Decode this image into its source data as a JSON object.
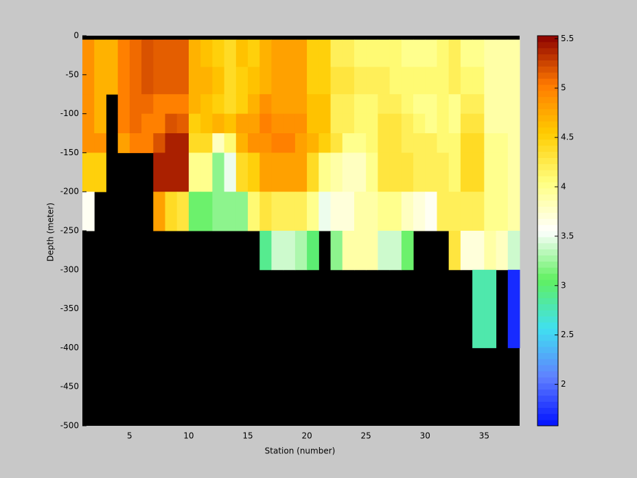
{
  "chart_data": {
    "type": "heatmap",
    "xlabel": "Station (number)",
    "ylabel": "Depth (meter)",
    "xlim": [
      1,
      38
    ],
    "ylim": [
      -500,
      0
    ],
    "xticks": [
      5,
      10,
      15,
      20,
      25,
      30,
      35
    ],
    "yticks": [
      0,
      -50,
      -100,
      -150,
      -200,
      -250,
      -300,
      -350,
      -400,
      -450,
      -500
    ],
    "clim": [
      1.58,
      5.53
    ],
    "cticks": [
      2,
      2.5,
      3,
      3.5,
      4,
      4.5,
      5,
      5.5
    ],
    "colormap": [
      "#0010ff",
      "#6080ff",
      "#40e0f0",
      "#60f060",
      "#ffffff",
      "#ffff80",
      "#ffcc00",
      "#ff7a00",
      "#8b0000"
    ],
    "background": "#000000",
    "station_edges": [
      1,
      2,
      3,
      4,
      5,
      6,
      7,
      8,
      9,
      10,
      11,
      12,
      13,
      14,
      15,
      16,
      17,
      18,
      19,
      20,
      21,
      22,
      23,
      24,
      25,
      26,
      27,
      28,
      29,
      30,
      31,
      32,
      33,
      34,
      35,
      36,
      37,
      38
    ],
    "depth_edges": [
      -5,
      -40,
      -75,
      -100,
      -125,
      -150,
      -200,
      -250,
      -300,
      -400,
      -500
    ],
    "z": [
      [
        4.9,
        4.7,
        4.7,
        5.0,
        5.1,
        5.2,
        5.15,
        5.15,
        5.15,
        4.7,
        4.6,
        4.5,
        4.4,
        4.6,
        4.5,
        4.7,
        4.8,
        4.8,
        4.8,
        4.5,
        4.5,
        4.2,
        4.2,
        4.1,
        4.1,
        4.1,
        4.1,
        4.0,
        4.0,
        4.0,
        4.1,
        4.2,
        4.0,
        4.0,
        3.9,
        3.9,
        3.9
      ],
      [
        4.9,
        4.7,
        4.7,
        5.0,
        5.1,
        5.2,
        5.15,
        5.15,
        5.15,
        4.7,
        4.7,
        4.6,
        4.4,
        4.5,
        4.6,
        4.7,
        4.8,
        4.8,
        4.8,
        4.5,
        4.5,
        4.3,
        4.3,
        4.2,
        4.2,
        4.2,
        4.1,
        4.1,
        4.1,
        4.1,
        4.1,
        4.2,
        4.1,
        4.1,
        3.9,
        3.9,
        3.9
      ],
      [
        4.9,
        4.7,
        null,
        5.0,
        5.1,
        5.1,
        5.0,
        5.0,
        5.0,
        4.7,
        4.6,
        4.5,
        4.4,
        4.5,
        4.7,
        4.9,
        4.8,
        4.8,
        4.8,
        4.6,
        4.6,
        4.2,
        4.2,
        4.1,
        4.1,
        4.2,
        4.2,
        4.1,
        4.0,
        4.0,
        4.1,
        4.0,
        4.2,
        4.2,
        3.9,
        3.9,
        3.9
      ],
      [
        4.9,
        4.7,
        null,
        5.0,
        5.1,
        5.0,
        5.0,
        5.2,
        5.15,
        4.5,
        4.6,
        4.7,
        4.6,
        4.8,
        4.8,
        5.0,
        4.9,
        4.9,
        4.9,
        4.6,
        4.6,
        4.2,
        4.2,
        4.1,
        4.1,
        4.3,
        4.3,
        4.2,
        4.1,
        4.0,
        4.1,
        4.0,
        4.3,
        4.3,
        3.9,
        3.9,
        3.9
      ],
      [
        4.9,
        4.9,
        null,
        4.8,
        5.0,
        5.0,
        5.2,
        5.4,
        5.4,
        4.4,
        4.4,
        3.8,
        4.1,
        4.7,
        4.9,
        4.9,
        5.0,
        5.0,
        4.8,
        4.7,
        4.5,
        4.3,
        4.0,
        4.0,
        4.1,
        4.3,
        4.3,
        4.2,
        4.2,
        4.2,
        4.1,
        4.1,
        4.4,
        4.4,
        4.0,
        4.0,
        3.9
      ],
      [
        4.5,
        4.5,
        null,
        null,
        null,
        null,
        5.4,
        5.4,
        5.4,
        4.0,
        4.0,
        3.2,
        3.5,
        4.4,
        4.5,
        4.8,
        4.8,
        4.8,
        4.8,
        4.4,
        4.0,
        3.9,
        3.8,
        3.8,
        4.0,
        4.3,
        4.3,
        4.3,
        4.2,
        4.2,
        4.2,
        4.1,
        4.4,
        4.4,
        4.0,
        4.0,
        3.9
      ],
      [
        3.6,
        null,
        null,
        null,
        null,
        null,
        4.8,
        4.4,
        4.3,
        3.1,
        3.1,
        3.2,
        3.2,
        3.2,
        4.1,
        4.3,
        4.2,
        4.2,
        4.2,
        4.0,
        3.5,
        3.7,
        3.7,
        3.9,
        3.9,
        4.0,
        4.0,
        3.8,
        3.7,
        3.6,
        4.2,
        4.2,
        4.2,
        4.2,
        4.0,
        4.0,
        3.9
      ],
      [
        null,
        null,
        null,
        null,
        null,
        null,
        null,
        null,
        null,
        null,
        null,
        null,
        null,
        null,
        null,
        2.9,
        3.4,
        3.4,
        3.3,
        3.0,
        null,
        3.2,
        3.9,
        3.9,
        3.9,
        3.4,
        3.4,
        3.1,
        null,
        null,
        null,
        4.3,
        3.7,
        3.7,
        3.9,
        3.8,
        3.4
      ],
      [
        null,
        null,
        null,
        null,
        null,
        null,
        null,
        null,
        null,
        null,
        null,
        null,
        null,
        null,
        null,
        null,
        null,
        null,
        null,
        null,
        null,
        null,
        null,
        null,
        null,
        null,
        null,
        null,
        null,
        null,
        null,
        null,
        null,
        2.8,
        2.8,
        null,
        1.7
      ],
      [
        null,
        null,
        null,
        null,
        null,
        null,
        null,
        null,
        null,
        null,
        null,
        null,
        null,
        null,
        null,
        null,
        null,
        null,
        null,
        null,
        null,
        null,
        null,
        null,
        null,
        null,
        null,
        null,
        null,
        null,
        null,
        null,
        null,
        null,
        null,
        null,
        null
      ]
    ]
  }
}
